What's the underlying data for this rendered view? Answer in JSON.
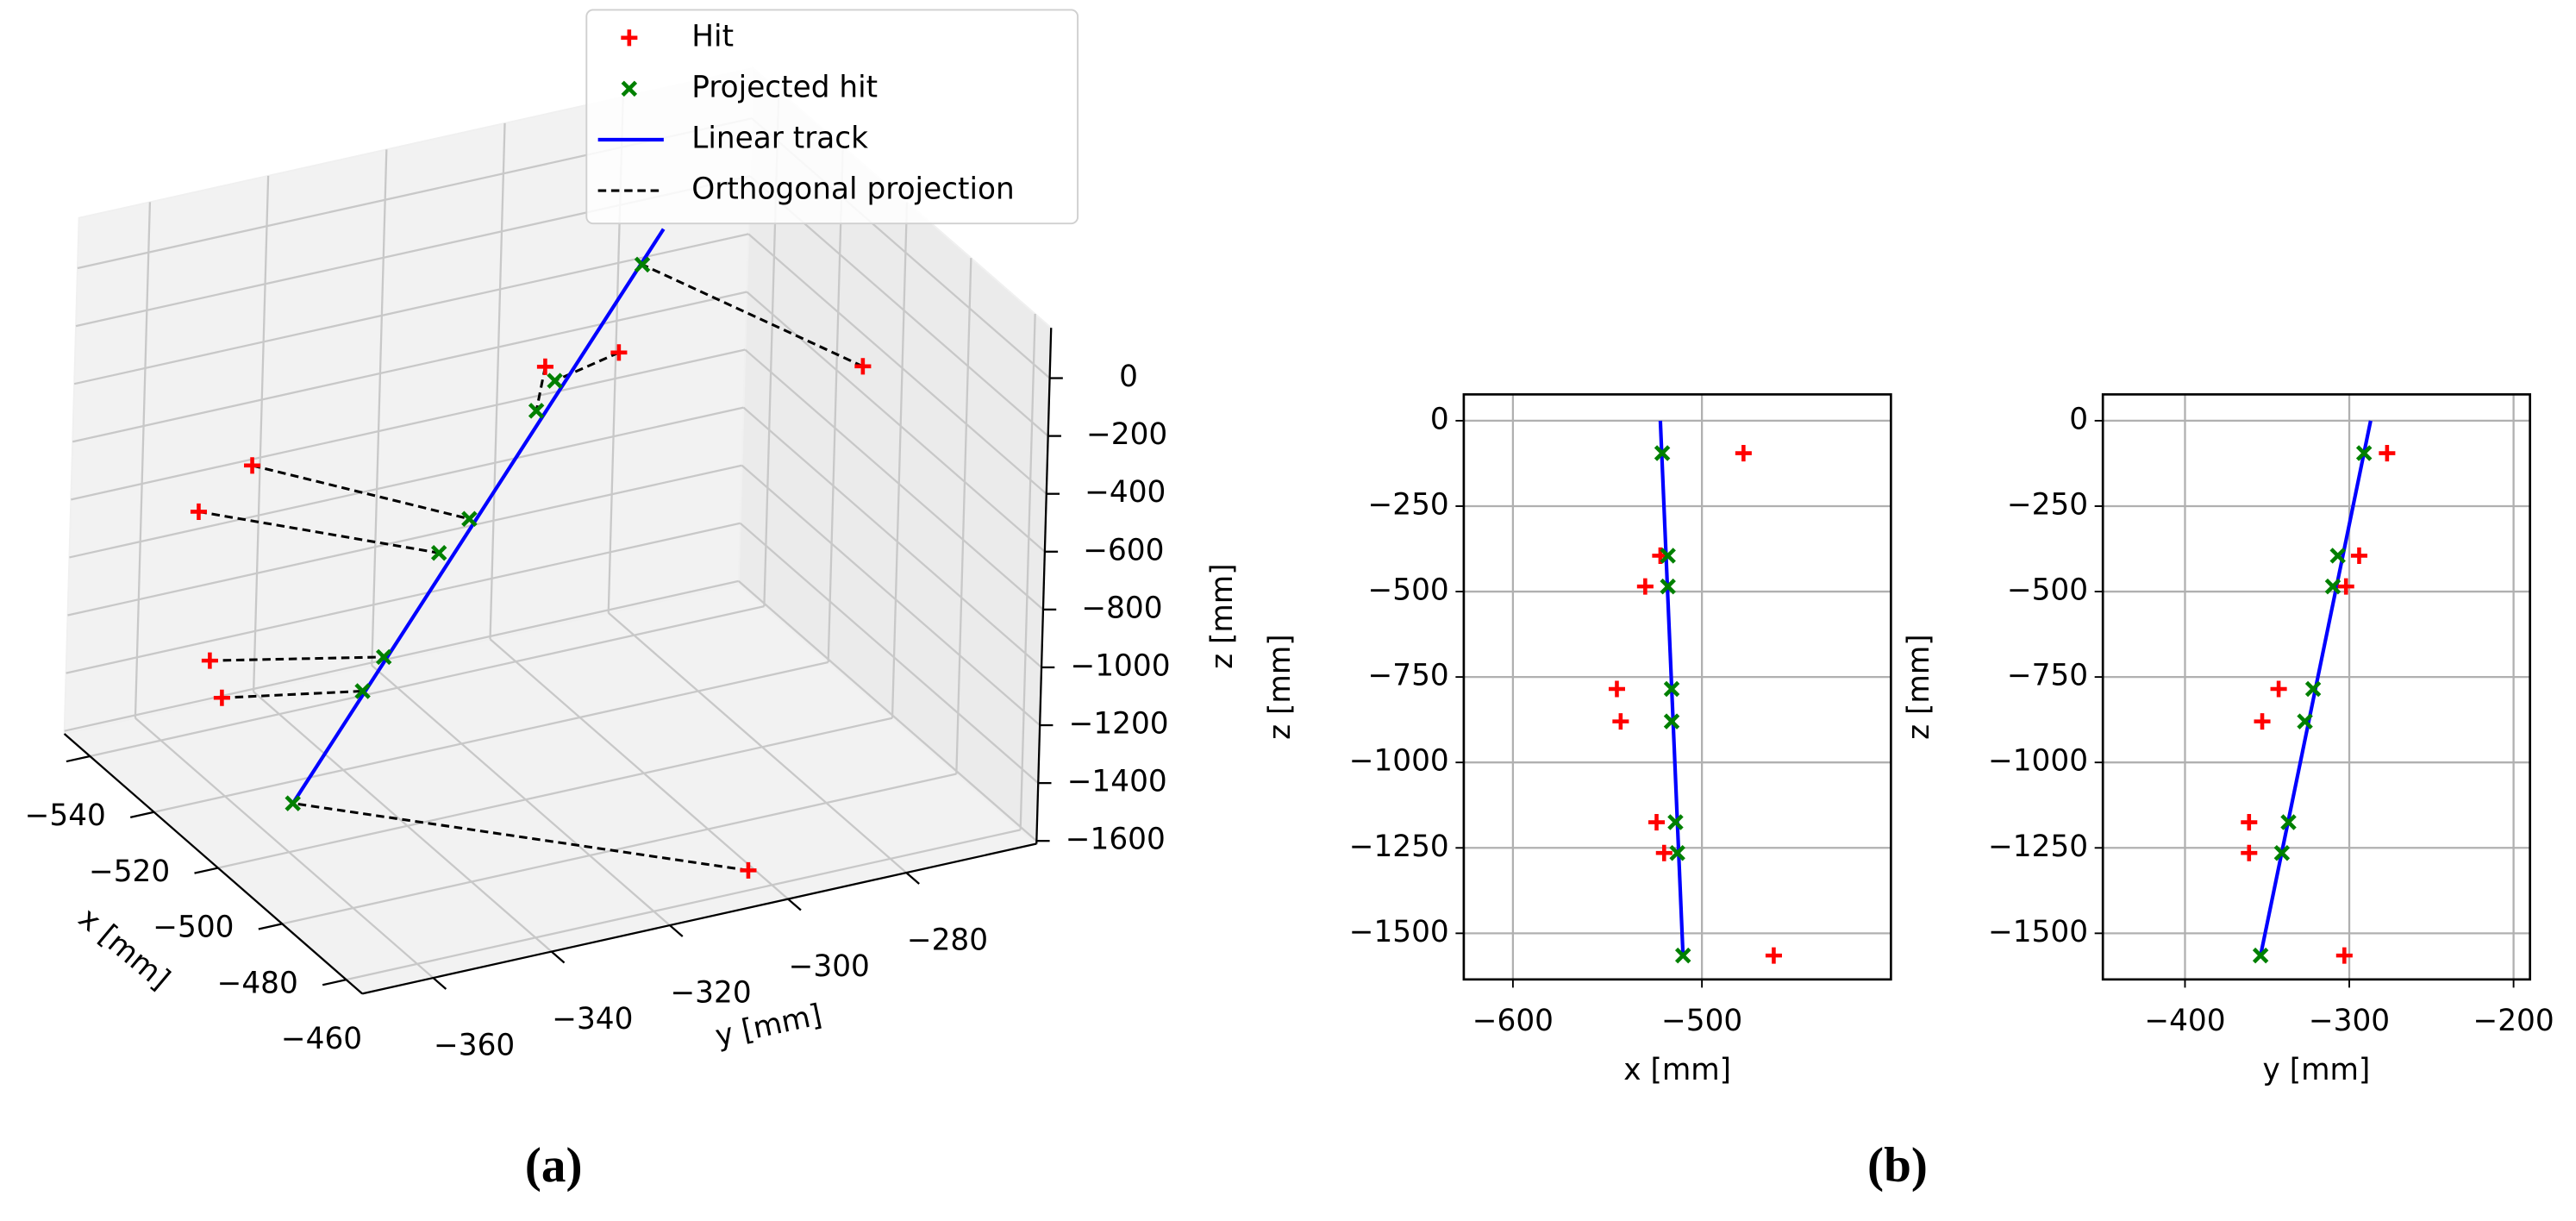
{
  "captions": [
    "(a)",
    "(b)"
  ],
  "chart_data": [
    {
      "type": "scatter3d",
      "xlabel": "x [mm]",
      "ylabel": "y [mm]",
      "zlabel": "z [mm]",
      "xlim": [
        -548,
        -455
      ],
      "ylim": [
        -372,
        -258
      ],
      "zlim": [
        -1610,
        174
      ],
      "xticks": [
        {
          "value": -540,
          "label": "−540"
        },
        {
          "value": -520,
          "label": "−520"
        },
        {
          "value": -500,
          "label": "−500"
        },
        {
          "value": -480,
          "label": "−480"
        },
        {
          "value": -460,
          "label": "−460"
        }
      ],
      "yticks": [
        {
          "value": -360,
          "label": "−360"
        },
        {
          "value": -340,
          "label": "−340"
        },
        {
          "value": -320,
          "label": "−320"
        },
        {
          "value": -300,
          "label": "−300"
        },
        {
          "value": -280,
          "label": "−280"
        }
      ],
      "zticks": [
        0,
        {
          "value": -200,
          "label": "−200"
        },
        {
          "value": -400,
          "label": "−400"
        },
        {
          "value": -600,
          "label": "−600"
        },
        {
          "value": -800,
          "label": "−800"
        },
        {
          "value": -1000,
          "label": "−1000"
        },
        {
          "value": -1200,
          "label": "−1200"
        },
        {
          "value": -1400,
          "label": "−1400"
        },
        {
          "value": -1600,
          "label": "−1600"
        }
      ],
      "grid": true,
      "legend": "upper center",
      "series": [
        {
          "name": "Hit",
          "color": "#ff0000",
          "marker": "+",
          "x": [
            -478,
            -522,
            -530,
            -545,
            -543,
            -524,
            -520,
            -462
          ],
          "y": [
            -277,
            -294,
            -302,
            -343,
            -353,
            -361,
            -361,
            -303
          ],
          "z": [
            -95,
            -395,
            -485,
            -785,
            -880,
            -1175,
            -1265,
            -1565
          ]
        },
        {
          "name": "Projected hit",
          "color": "#008000",
          "marker": "x",
          "x": [
            -521,
            -518,
            -518,
            -516,
            -516,
            -514,
            -513,
            -510
          ],
          "y": [
            -291,
            -307,
            -310,
            -322,
            -327,
            -337,
            -341,
            -354
          ],
          "z": [
            -95,
            -395,
            -485,
            -785,
            -880,
            -1175,
            -1265,
            -1565
          ]
        },
        {
          "name": "Linear track",
          "color": "#0000ff",
          "x": [
            -522,
            -510
          ],
          "y": [
            -287,
            -354
          ],
          "z": [
            0,
            -1565
          ]
        },
        {
          "name": "Orthogonal projection",
          "color": "#000000",
          "linestyle": "dashed"
        }
      ]
    },
    {
      "type": "scatter",
      "xlabel": "x [mm]",
      "ylabel": "z [mm]",
      "xlim": [
        -626,
        -400
      ],
      "ylim": [
        -1635,
        77
      ],
      "xticks": [
        {
          "value": -600,
          "label": "−600"
        },
        {
          "value": -500,
          "label": "−500"
        }
      ],
      "yticks": [
        0,
        {
          "value": -250,
          "label": "−250"
        },
        {
          "value": -500,
          "label": "−500"
        },
        {
          "value": -750,
          "label": "−750"
        },
        {
          "value": -1000,
          "label": "−1000"
        },
        {
          "value": -1250,
          "label": "−1250"
        },
        {
          "value": -1500,
          "label": "−1500"
        }
      ],
      "grid": true,
      "series": [
        {
          "name": "Hit",
          "color": "#ff0000",
          "marker": "+",
          "x": [
            -478,
            -522,
            -530,
            -545,
            -543,
            -524,
            -520,
            -462
          ],
          "y": [
            -95,
            -395,
            -485,
            -785,
            -880,
            -1175,
            -1265,
            -1565
          ]
        },
        {
          "name": "Projected hit",
          "color": "#008000",
          "marker": "x",
          "x": [
            -521,
            -518,
            -518,
            -516,
            -516,
            -514,
            -513,
            -510
          ],
          "y": [
            -95,
            -395,
            -485,
            -785,
            -880,
            -1175,
            -1265,
            -1565
          ]
        },
        {
          "name": "Linear track",
          "color": "#0000ff",
          "x": [
            -522,
            -510
          ],
          "y": [
            0,
            -1565
          ]
        }
      ]
    },
    {
      "type": "scatter",
      "xlabel": "y [mm]",
      "ylabel": "z [mm]",
      "xlim": [
        -450,
        -190
      ],
      "ylim": [
        -1635,
        77
      ],
      "xticks": [
        {
          "value": -400,
          "label": "−400"
        },
        {
          "value": -300,
          "label": "−300"
        },
        {
          "value": -200,
          "label": "−200"
        }
      ],
      "yticks": [
        0,
        {
          "value": -250,
          "label": "−250"
        },
        {
          "value": -500,
          "label": "−500"
        },
        {
          "value": -750,
          "label": "−750"
        },
        {
          "value": -1000,
          "label": "−1000"
        },
        {
          "value": -1250,
          "label": "−1250"
        },
        {
          "value": -1500,
          "label": "−1500"
        }
      ],
      "grid": true,
      "series": [
        {
          "name": "Hit",
          "color": "#ff0000",
          "marker": "+",
          "x": [
            -277,
            -294,
            -302,
            -343,
            -353,
            -361,
            -361,
            -303
          ],
          "y": [
            -95,
            -395,
            -485,
            -785,
            -880,
            -1175,
            -1265,
            -1565
          ]
        },
        {
          "name": "Projected hit",
          "color": "#008000",
          "marker": "x",
          "x": [
            -291,
            -307,
            -310,
            -322,
            -327,
            -337,
            -341,
            -354
          ],
          "y": [
            -95,
            -395,
            -485,
            -785,
            -880,
            -1175,
            -1265,
            -1565
          ]
        },
        {
          "name": "Linear track",
          "color": "#0000ff",
          "x": [
            -287,
            -354
          ],
          "y": [
            0,
            -1565
          ]
        }
      ]
    }
  ]
}
